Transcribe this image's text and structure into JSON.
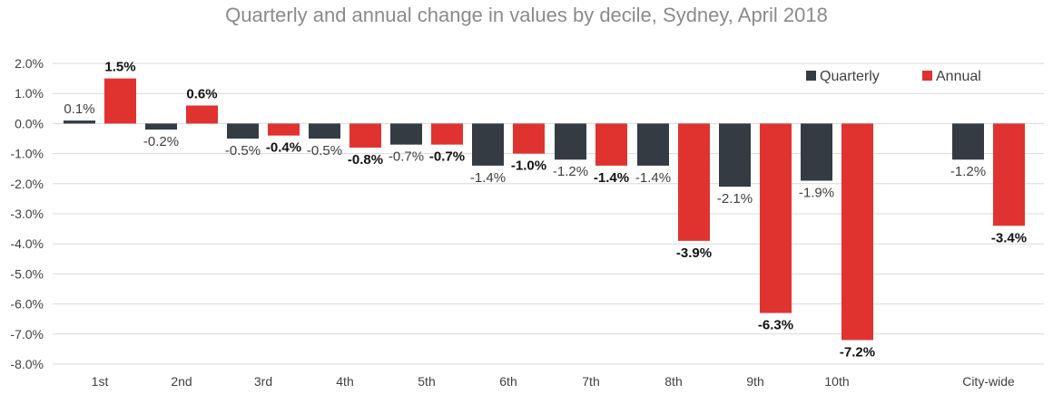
{
  "chart_data": {
    "type": "bar",
    "title": "Quarterly and annual change in values by decile, Sydney, April 2018",
    "categories": [
      "1st",
      "2nd",
      "3rd",
      "4th",
      "5th",
      "6th",
      "7th",
      "8th",
      "9th",
      "10th",
      "City-wide"
    ],
    "series": [
      {
        "name": "Quarterly",
        "color": "#343b43",
        "values": [
          0.1,
          -0.2,
          -0.5,
          -0.5,
          -0.7,
          -1.4,
          -1.2,
          -1.4,
          -2.1,
          -1.9,
          -1.2
        ],
        "labels": [
          "0.1%",
          "-0.2%",
          "-0.5%",
          "-0.5%",
          "-0.7%",
          "-1.4%",
          "-1.2%",
          "-1.4%",
          "-2.1%",
          "-1.9%",
          "-1.2%"
        ]
      },
      {
        "name": "Annual",
        "color": "#e0332f",
        "values": [
          1.5,
          0.6,
          -0.4,
          -0.8,
          -0.7,
          -1.0,
          -1.4,
          -3.9,
          -6.3,
          -7.2,
          -3.4
        ],
        "labels": [
          "1.5%",
          "0.6%",
          "-0.4%",
          "-0.8%",
          "-0.7%",
          "-1.0%",
          "-1.4%",
          "-3.9%",
          "-6.3%",
          "-7.2%",
          "-3.4%"
        ]
      }
    ],
    "ylim": [
      -8.0,
      2.0
    ],
    "yticks": [
      "2.0%",
      "1.0%",
      "0.0%",
      "-1.0%",
      "-2.0%",
      "-3.0%",
      "-4.0%",
      "-5.0%",
      "-6.0%",
      "-7.0%",
      "-8.0%"
    ],
    "ytick_values": [
      2,
      1,
      0,
      -1,
      -2,
      -3,
      -4,
      -5,
      -6,
      -7,
      -8
    ],
    "grid": true,
    "legend_position": "top-right"
  }
}
